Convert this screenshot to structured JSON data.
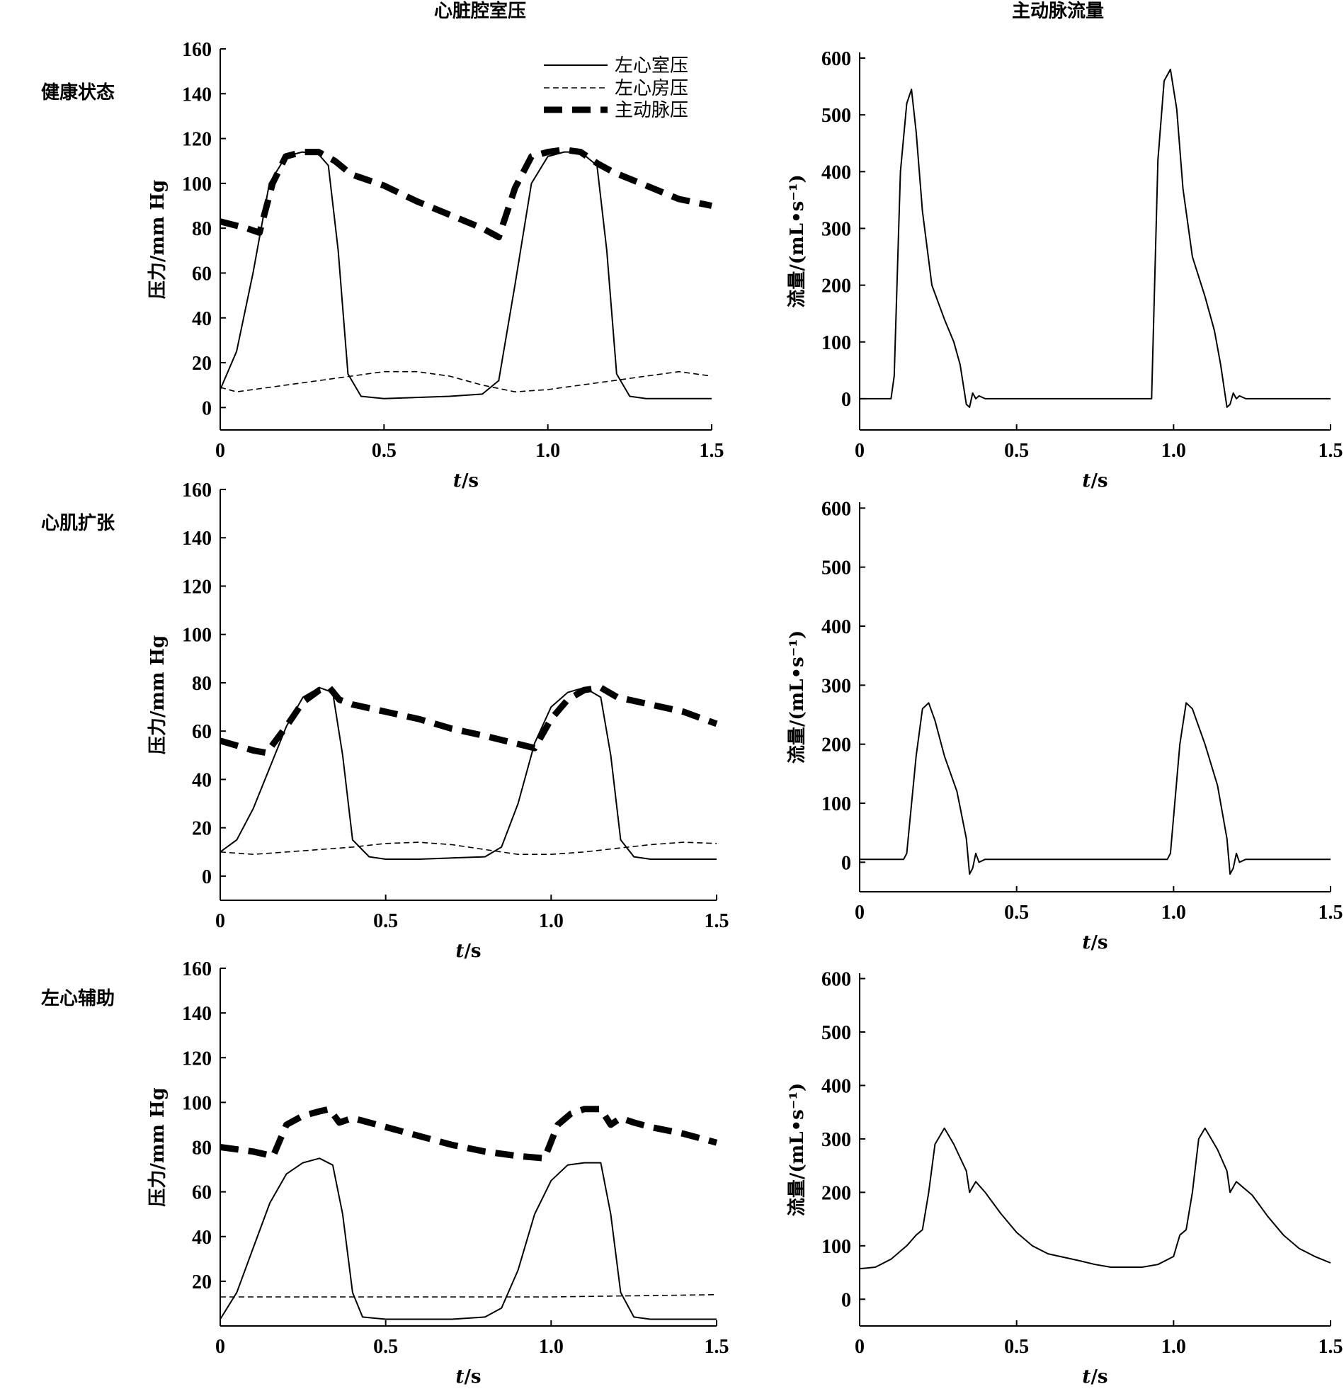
{
  "figure": {
    "col_titles": [
      "心脏腔室压",
      "主动脉流量"
    ],
    "row_titles": [
      "健康状态",
      "心肌扩张",
      "左心辅助"
    ],
    "legend": [
      "左心室压",
      "左心房压",
      "主动脉压"
    ],
    "colors": {
      "ink": "#000000"
    }
  },
  "chart_data": [
    {
      "type": "line",
      "panel": "健康状态 / 心脏腔室压",
      "xlabel_italic": "t",
      "xlabel_unit": "/s",
      "ylabel": "压力/mm Hg",
      "xlim": [
        0,
        1.5
      ],
      "ylim": [
        -10,
        160
      ],
      "xticks": [
        "0",
        "0.5",
        "1.0",
        "1.5"
      ],
      "yticks": [
        "0",
        "20",
        "40",
        "60",
        "80",
        "100",
        "120",
        "140",
        "160"
      ],
      "series": [
        {
          "name": "左心室压",
          "style": "solid",
          "x": [
            0,
            0.05,
            0.1,
            0.15,
            0.2,
            0.25,
            0.3,
            0.33,
            0.36,
            0.39,
            0.43,
            0.5,
            0.6,
            0.7,
            0.8,
            0.85,
            0.9,
            0.95,
            1.0,
            1.05,
            1.1,
            1.15,
            1.18,
            1.21,
            1.25,
            1.3,
            1.4,
            1.5
          ],
          "y": [
            8,
            25,
            60,
            100,
            112,
            114,
            113,
            108,
            70,
            15,
            5,
            4,
            4.5,
            5,
            6,
            12,
            55,
            100,
            112,
            114,
            114,
            108,
            70,
            15,
            5,
            4,
            4,
            4
          ]
        },
        {
          "name": "左心房压",
          "style": "dashed",
          "x": [
            0,
            0.05,
            0.1,
            0.2,
            0.3,
            0.4,
            0.5,
            0.6,
            0.7,
            0.8,
            0.9,
            1.0,
            1.1,
            1.2,
            1.3,
            1.4,
            1.5
          ],
          "y": [
            9,
            7,
            8,
            10,
            12,
            14,
            16,
            16,
            14,
            10,
            7,
            8,
            10,
            12,
            14,
            16,
            14
          ]
        },
        {
          "name": "主动脉压",
          "style": "thickdash",
          "x": [
            0,
            0.08,
            0.12,
            0.16,
            0.2,
            0.25,
            0.3,
            0.35,
            0.4,
            0.5,
            0.6,
            0.7,
            0.8,
            0.85,
            0.9,
            0.95,
            1.0,
            1.05,
            1.1,
            1.15,
            1.2,
            1.3,
            1.4,
            1.5
          ],
          "y": [
            83,
            80,
            78,
            100,
            112,
            114,
            114,
            110,
            104,
            99,
            92,
            86,
            80,
            76,
            98,
            112,
            114,
            115,
            114,
            109,
            105,
            99,
            93,
            90
          ]
        }
      ]
    },
    {
      "type": "line",
      "panel": "健康状态 / 主动脉流量",
      "xlabel_italic": "t",
      "xlabel_unit": "/s",
      "ylabel": "流量/(mL•s⁻¹)",
      "xlim": [
        0,
        1.5
      ],
      "ylim": [
        -55,
        610
      ],
      "xticks": [
        "0",
        "0.5",
        "1.0",
        "1.5"
      ],
      "yticks": [
        "0",
        "100",
        "200",
        "300",
        "400",
        "500",
        "600"
      ],
      "series": [
        {
          "style": "solid",
          "x": [
            0,
            0.1,
            0.11,
            0.13,
            0.15,
            0.165,
            0.18,
            0.2,
            0.23,
            0.27,
            0.3,
            0.32,
            0.34,
            0.35,
            0.36,
            0.37,
            0.38,
            0.4,
            0.45,
            0.9,
            0.93,
            0.95,
            0.97,
            0.99,
            1.01,
            1.03,
            1.06,
            1.1,
            1.13,
            1.15,
            1.17,
            1.18,
            1.19,
            1.2,
            1.21,
            1.23,
            1.3,
            1.5
          ],
          "y": [
            0,
            0,
            40,
            400,
            520,
            545,
            470,
            330,
            200,
            140,
            100,
            60,
            -10,
            -15,
            10,
            0,
            5,
            0,
            0,
            0,
            0,
            420,
            560,
            580,
            510,
            370,
            250,
            180,
            120,
            60,
            -15,
            -10,
            10,
            0,
            5,
            0,
            0,
            0
          ]
        }
      ]
    },
    {
      "type": "line",
      "panel": "心肌扩张 / 心脏腔室压",
      "xlabel_italic": "t",
      "xlabel_unit": "/s",
      "ylabel": "压力/mm Hg",
      "xlim": [
        0,
        1.5
      ],
      "ylim": [
        -10,
        160
      ],
      "xticks": [
        "0",
        "0.5",
        "1.0",
        "1.5"
      ],
      "yticks": [
        "0",
        "20",
        "40",
        "60",
        "80",
        "100",
        "120",
        "140",
        "160"
      ],
      "series": [
        {
          "name": "左心室压",
          "style": "solid",
          "x": [
            0,
            0.05,
            0.1,
            0.15,
            0.2,
            0.25,
            0.3,
            0.34,
            0.37,
            0.4,
            0.45,
            0.5,
            0.6,
            0.7,
            0.8,
            0.85,
            0.9,
            0.95,
            1.0,
            1.05,
            1.1,
            1.15,
            1.18,
            1.21,
            1.25,
            1.3,
            1.4,
            1.5
          ],
          "y": [
            10,
            15,
            28,
            45,
            62,
            74,
            78,
            76,
            50,
            15,
            8,
            7,
            7,
            7.5,
            8,
            12,
            30,
            55,
            70,
            76,
            78,
            74,
            50,
            15,
            8,
            7,
            7,
            7
          ]
        },
        {
          "name": "左心房压",
          "style": "dashed",
          "x": [
            0,
            0.1,
            0.2,
            0.3,
            0.4,
            0.5,
            0.6,
            0.7,
            0.8,
            0.9,
            1.0,
            1.1,
            1.2,
            1.3,
            1.4,
            1.5
          ],
          "y": [
            10,
            9,
            10,
            11,
            12,
            13.5,
            14,
            13,
            11,
            9,
            9,
            10,
            11.5,
            13,
            14,
            13.5
          ]
        },
        {
          "name": "主动脉压",
          "style": "thickdash",
          "x": [
            0,
            0.1,
            0.14,
            0.2,
            0.25,
            0.3,
            0.33,
            0.36,
            0.4,
            0.5,
            0.6,
            0.7,
            0.8,
            0.95,
            1.0,
            1.05,
            1.1,
            1.15,
            1.2,
            1.3,
            1.4,
            1.5
          ],
          "y": [
            56,
            52,
            51,
            62,
            72,
            77,
            78,
            73,
            71,
            68,
            65,
            61,
            58,
            53,
            65,
            73,
            77,
            78,
            74,
            71,
            68,
            63
          ]
        }
      ]
    },
    {
      "type": "line",
      "panel": "心肌扩张 / 主动脉流量",
      "xlabel_italic": "t",
      "xlabel_unit": "/s",
      "ylabel": "流量/(mL•s⁻¹)",
      "xlim": [
        0,
        1.5
      ],
      "ylim": [
        -50,
        610
      ],
      "xticks": [
        "0",
        "0.5",
        "1.0",
        "1.5"
      ],
      "yticks": [
        "0",
        "100",
        "200",
        "300",
        "400",
        "500",
        "600"
      ],
      "series": [
        {
          "style": "solid",
          "x": [
            0,
            0.14,
            0.15,
            0.18,
            0.2,
            0.22,
            0.24,
            0.27,
            0.31,
            0.34,
            0.35,
            0.36,
            0.37,
            0.38,
            0.4,
            0.45,
            0.98,
            0.99,
            1.02,
            1.04,
            1.06,
            1.1,
            1.14,
            1.17,
            1.18,
            1.19,
            1.2,
            1.21,
            1.23,
            1.3,
            1.5
          ],
          "y": [
            5,
            5,
            15,
            180,
            260,
            270,
            240,
            180,
            120,
            40,
            -20,
            -10,
            15,
            0,
            5,
            5,
            5,
            15,
            200,
            270,
            260,
            200,
            130,
            40,
            -20,
            -10,
            15,
            0,
            5,
            5,
            5
          ]
        }
      ]
    },
    {
      "type": "line",
      "panel": "左心辅助 / 心脏腔室压",
      "xlabel_italic": "t",
      "xlabel_unit": "/s",
      "ylabel": "压力/mm Hg",
      "xlim": [
        0,
        1.5
      ],
      "ylim": [
        0,
        160
      ],
      "xticks": [
        "0",
        "0.5",
        "1.0",
        "1.5"
      ],
      "yticks": [
        "20",
        "40",
        "60",
        "80",
        "100",
        "120",
        "140",
        "160"
      ],
      "series": [
        {
          "name": "左心室压",
          "style": "solid",
          "x": [
            0,
            0.05,
            0.1,
            0.15,
            0.2,
            0.25,
            0.3,
            0.34,
            0.37,
            0.4,
            0.43,
            0.5,
            0.6,
            0.7,
            0.8,
            0.85,
            0.9,
            0.95,
            1.0,
            1.05,
            1.1,
            1.15,
            1.18,
            1.21,
            1.25,
            1.3,
            1.4,
            1.5
          ],
          "y": [
            3,
            15,
            35,
            55,
            68,
            73,
            75,
            72,
            50,
            15,
            4,
            3,
            3,
            3,
            4,
            8,
            25,
            50,
            65,
            72,
            73,
            73,
            50,
            15,
            4,
            3,
            3,
            3
          ]
        },
        {
          "name": "左心房压",
          "style": "dashed",
          "x": [
            0,
            0.5,
            1.0,
            1.5
          ],
          "y": [
            13,
            13,
            13,
            14
          ]
        },
        {
          "name": "主动脉压",
          "style": "thickdash",
          "x": [
            0,
            0.1,
            0.16,
            0.2,
            0.25,
            0.3,
            0.33,
            0.36,
            0.4,
            0.5,
            0.6,
            0.7,
            0.8,
            0.9,
            0.98,
            1.02,
            1.06,
            1.1,
            1.15,
            1.18,
            1.21,
            1.25,
            1.3,
            1.4,
            1.5
          ],
          "y": [
            80,
            78,
            76,
            90,
            94,
            96,
            97,
            91,
            93,
            89,
            85,
            81,
            78,
            76,
            75,
            90,
            95,
            97,
            97,
            90,
            93,
            91,
            89,
            86,
            82
          ]
        }
      ]
    },
    {
      "type": "line",
      "panel": "左心辅助 / 主动脉流量",
      "xlabel_italic": "t",
      "xlabel_unit": "/s",
      "ylabel": "流量/(mL•s⁻¹)",
      "xlim": [
        0,
        1.5
      ],
      "ylim": [
        -50,
        610
      ],
      "xticks": [
        "0",
        "0.5",
        "1.0",
        "1.5"
      ],
      "yticks": [
        "0",
        "100",
        "200",
        "300",
        "400",
        "500",
        "600"
      ],
      "series": [
        {
          "style": "solid",
          "x": [
            0,
            0.05,
            0.1,
            0.15,
            0.18,
            0.2,
            0.22,
            0.24,
            0.27,
            0.3,
            0.34,
            0.35,
            0.37,
            0.4,
            0.45,
            0.5,
            0.55,
            0.6,
            0.7,
            0.75,
            0.8,
            0.85,
            0.9,
            0.95,
            1.0,
            1.02,
            1.04,
            1.06,
            1.08,
            1.1,
            1.14,
            1.17,
            1.18,
            1.2,
            1.25,
            1.3,
            1.35,
            1.4,
            1.45,
            1.5
          ],
          "y": [
            57,
            60,
            75,
            100,
            120,
            130,
            200,
            290,
            320,
            290,
            240,
            200,
            220,
            200,
            160,
            125,
            100,
            85,
            72,
            65,
            60,
            60,
            60,
            65,
            80,
            120,
            130,
            200,
            300,
            320,
            280,
            240,
            200,
            220,
            195,
            155,
            120,
            95,
            80,
            68
          ]
        }
      ]
    }
  ]
}
